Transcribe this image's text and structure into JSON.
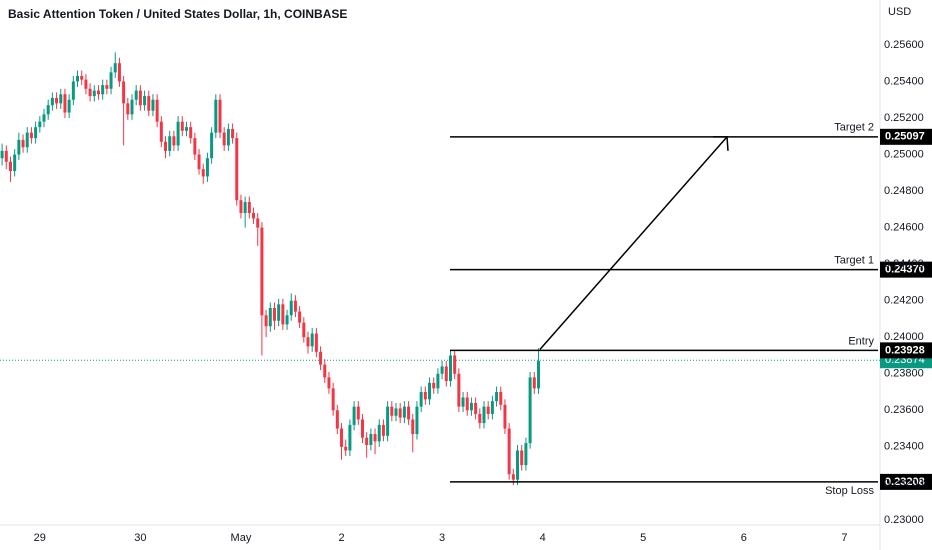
{
  "chart_data": {
    "type": "candlestick",
    "title": "Basic Attention Token / United States Dollar, 1h, COINBASE",
    "currency": "USD",
    "up_color": "#089981",
    "down_color": "#f23645",
    "grid": false,
    "xlim": [
      -9.5,
      200.5
    ],
    "ylim": [
      0.22972,
      0.25846
    ],
    "xticks": [
      {
        "value": 0,
        "label": "29"
      },
      {
        "value": 24,
        "label": "30"
      },
      {
        "value": 48,
        "label": "May"
      },
      {
        "value": 72,
        "label": "2"
      },
      {
        "value": 96,
        "label": "3"
      },
      {
        "value": 120,
        "label": "4"
      },
      {
        "value": 144,
        "label": "5"
      },
      {
        "value": 168,
        "label": "6"
      },
      {
        "value": 192,
        "label": "7"
      }
    ],
    "yticks": [
      {
        "value": 0.256,
        "label": "0.25600"
      },
      {
        "value": 0.254,
        "label": "0.25400"
      },
      {
        "value": 0.252,
        "label": "0.25200"
      },
      {
        "value": 0.25,
        "label": "0.25000"
      },
      {
        "value": 0.248,
        "label": "0.24800"
      },
      {
        "value": 0.246,
        "label": "0.24600"
      },
      {
        "value": 0.244,
        "label": "0.24400"
      },
      {
        "value": 0.242,
        "label": "0.24200"
      },
      {
        "value": 0.24,
        "label": "0.24000"
      },
      {
        "value": 0.238,
        "label": "0.23800"
      },
      {
        "value": 0.236,
        "label": "0.23600"
      },
      {
        "value": 0.234,
        "label": "0.23400"
      },
      {
        "value": 0.232,
        "label": "0.23200"
      },
      {
        "value": 0.23,
        "label": "0.23000"
      }
    ],
    "levels": {
      "names": [
        "Target 2",
        "Target 1",
        "Entry",
        "Stop Loss"
      ],
      "values": [
        0.25097,
        0.2437,
        0.23928,
        0.23208
      ],
      "value_labels": [
        "0.25097",
        "0.24370",
        "0.23928",
        "0.23208"
      ],
      "color": "#000000"
    },
    "last_price": 0.23874,
    "last_price_label": "0.23874",
    "x": [
      -9,
      -8,
      -7,
      -6,
      -5,
      -4,
      -3,
      -2,
      -1,
      0,
      1,
      2,
      3,
      4,
      5,
      6,
      7,
      8,
      9,
      10,
      11,
      12,
      13,
      14,
      15,
      16,
      17,
      18,
      19,
      20,
      21,
      22,
      23,
      24,
      25,
      26,
      27,
      28,
      29,
      30,
      31,
      32,
      33,
      34,
      35,
      36,
      37,
      38,
      39,
      40,
      41,
      42,
      43,
      44,
      45,
      46,
      47,
      48,
      49,
      50,
      51,
      52,
      53,
      54,
      55,
      56,
      57,
      58,
      59,
      60,
      61,
      62,
      63,
      64,
      65,
      66,
      67,
      68,
      69,
      70,
      71,
      72,
      73,
      74,
      75,
      76,
      77,
      78,
      79,
      80,
      81,
      82,
      83,
      84,
      85,
      86,
      87,
      88,
      89,
      90,
      91,
      92,
      93,
      94,
      95,
      96,
      97,
      98,
      99,
      100,
      101,
      102,
      103,
      104,
      105,
      106,
      107,
      108,
      109,
      110,
      111,
      112,
      113,
      114,
      115,
      116,
      117,
      118,
      119
    ],
    "ohlc": [
      [
        0.2498,
        0.2506,
        0.2494,
        0.2502
      ],
      [
        0.2502,
        0.2505,
        0.2492,
        0.2496
      ],
      [
        0.2496,
        0.2499,
        0.2485,
        0.2491
      ],
      [
        0.2491,
        0.2503,
        0.2488,
        0.25
      ],
      [
        0.25,
        0.2512,
        0.2497,
        0.2508
      ],
      [
        0.2508,
        0.2511,
        0.2501,
        0.2504
      ],
      [
        0.2504,
        0.2515,
        0.2501,
        0.2512
      ],
      [
        0.2512,
        0.2515,
        0.2506,
        0.2509
      ],
      [
        0.2509,
        0.2518,
        0.2506,
        0.2515
      ],
      [
        0.2515,
        0.2521,
        0.2512,
        0.2518
      ],
      [
        0.2518,
        0.2525,
        0.2515,
        0.2522
      ],
      [
        0.2522,
        0.253,
        0.2519,
        0.2527
      ],
      [
        0.2527,
        0.2534,
        0.2524,
        0.2531
      ],
      [
        0.2531,
        0.2534,
        0.2525,
        0.2528
      ],
      [
        0.2528,
        0.2536,
        0.2525,
        0.2533
      ],
      [
        0.2533,
        0.2536,
        0.252,
        0.2523
      ],
      [
        0.2523,
        0.2533,
        0.252,
        0.253
      ],
      [
        0.253,
        0.2543,
        0.2527,
        0.254
      ],
      [
        0.254,
        0.2546,
        0.2537,
        0.2543
      ],
      [
        0.2543,
        0.2546,
        0.2538,
        0.2541
      ],
      [
        0.2541,
        0.2544,
        0.2533,
        0.2536
      ],
      [
        0.2536,
        0.2539,
        0.2529,
        0.2532
      ],
      [
        0.2532,
        0.2538,
        0.2529,
        0.2535
      ],
      [
        0.2535,
        0.2538,
        0.253,
        0.2533
      ],
      [
        0.2533,
        0.2541,
        0.253,
        0.2538
      ],
      [
        0.2538,
        0.2541,
        0.2533,
        0.2536
      ],
      [
        0.2536,
        0.2548,
        0.2533,
        0.2545
      ],
      [
        0.2545,
        0.2556,
        0.2542,
        0.255
      ],
      [
        0.255,
        0.2553,
        0.2537,
        0.254
      ],
      [
        0.254,
        0.2543,
        0.2505,
        0.2528
      ],
      [
        0.2528,
        0.2531,
        0.2519,
        0.2522
      ],
      [
        0.2522,
        0.2533,
        0.2519,
        0.253
      ],
      [
        0.253,
        0.2538,
        0.2527,
        0.2535
      ],
      [
        0.2535,
        0.2538,
        0.2524,
        0.2527
      ],
      [
        0.2527,
        0.2535,
        0.2524,
        0.2532
      ],
      [
        0.2532,
        0.2535,
        0.2521,
        0.2524
      ],
      [
        0.2524,
        0.2533,
        0.2521,
        0.253
      ],
      [
        0.253,
        0.2533,
        0.2515,
        0.2518
      ],
      [
        0.2518,
        0.2521,
        0.2504,
        0.2507
      ],
      [
        0.2507,
        0.251,
        0.2498,
        0.2502
      ],
      [
        0.2502,
        0.2513,
        0.2499,
        0.251
      ],
      [
        0.251,
        0.2513,
        0.2502,
        0.2505
      ],
      [
        0.2505,
        0.2521,
        0.2502,
        0.2518
      ],
      [
        0.2518,
        0.2521,
        0.251,
        0.2513
      ],
      [
        0.2513,
        0.2518,
        0.251,
        0.2515
      ],
      [
        0.2515,
        0.2518,
        0.2506,
        0.2509
      ],
      [
        0.2509,
        0.2512,
        0.2497,
        0.25
      ],
      [
        0.25,
        0.2503,
        0.2489,
        0.2492
      ],
      [
        0.2492,
        0.2495,
        0.2484,
        0.2488
      ],
      [
        0.2488,
        0.2501,
        0.2485,
        0.2498
      ],
      [
        0.2498,
        0.2515,
        0.2495,
        0.2512
      ],
      [
        0.2512,
        0.2533,
        0.2509,
        0.253
      ],
      [
        0.253,
        0.2533,
        0.2509,
        0.2512
      ],
      [
        0.2512,
        0.2515,
        0.2502,
        0.2505
      ],
      [
        0.2505,
        0.2517,
        0.2502,
        0.2514
      ],
      [
        0.2514,
        0.2517,
        0.2506,
        0.2509
      ],
      [
        0.2509,
        0.2512,
        0.2472,
        0.2475
      ],
      [
        0.2475,
        0.2478,
        0.2465,
        0.2468
      ],
      [
        0.2468,
        0.2477,
        0.246,
        0.2474
      ],
      [
        0.2474,
        0.2477,
        0.2465,
        0.2468
      ],
      [
        0.2468,
        0.2471,
        0.2462,
        0.2465
      ],
      [
        0.2465,
        0.2468,
        0.245,
        0.246
      ],
      [
        0.246,
        0.2463,
        0.239,
        0.2412
      ],
      [
        0.2412,
        0.2415,
        0.24,
        0.2406
      ],
      [
        0.2406,
        0.2419,
        0.2403,
        0.2416
      ],
      [
        0.2416,
        0.2419,
        0.2404,
        0.2409
      ],
      [
        0.2409,
        0.2421,
        0.2406,
        0.2418
      ],
      [
        0.2418,
        0.2421,
        0.2404,
        0.2407
      ],
      [
        0.2407,
        0.2415,
        0.2404,
        0.2412
      ],
      [
        0.2412,
        0.2424,
        0.2409,
        0.242
      ],
      [
        0.242,
        0.2423,
        0.2411,
        0.2414
      ],
      [
        0.2414,
        0.2417,
        0.2405,
        0.2408
      ],
      [
        0.2408,
        0.2411,
        0.2397,
        0.24
      ],
      [
        0.24,
        0.2403,
        0.2391,
        0.2395
      ],
      [
        0.2395,
        0.2405,
        0.2392,
        0.2402
      ],
      [
        0.2402,
        0.2405,
        0.2389,
        0.2392
      ],
      [
        0.2392,
        0.2395,
        0.2382,
        0.2385
      ],
      [
        0.2385,
        0.2388,
        0.2375,
        0.2378
      ],
      [
        0.2378,
        0.2381,
        0.2369,
        0.2372
      ],
      [
        0.2372,
        0.2375,
        0.2357,
        0.236
      ],
      [
        0.236,
        0.2363,
        0.2347,
        0.235
      ],
      [
        0.235,
        0.2353,
        0.2333,
        0.234
      ],
      [
        0.234,
        0.2344,
        0.2335,
        0.2338
      ],
      [
        0.2338,
        0.2355,
        0.2335,
        0.2352
      ],
      [
        0.2352,
        0.2365,
        0.2349,
        0.2362
      ],
      [
        0.2362,
        0.2365,
        0.2352,
        0.2355
      ],
      [
        0.2355,
        0.2358,
        0.2342,
        0.2345
      ],
      [
        0.2345,
        0.2348,
        0.2334,
        0.2341
      ],
      [
        0.2341,
        0.235,
        0.2338,
        0.2347
      ],
      [
        0.2347,
        0.235,
        0.2336,
        0.2343
      ],
      [
        0.2343,
        0.2355,
        0.234,
        0.2352
      ],
      [
        0.2352,
        0.2355,
        0.2343,
        0.2346
      ],
      [
        0.2346,
        0.2365,
        0.2343,
        0.2362
      ],
      [
        0.2362,
        0.2365,
        0.2354,
        0.2357
      ],
      [
        0.2357,
        0.2364,
        0.2354,
        0.2361
      ],
      [
        0.2361,
        0.2364,
        0.2353,
        0.2356
      ],
      [
        0.2356,
        0.2365,
        0.2353,
        0.2362
      ],
      [
        0.2362,
        0.2365,
        0.2352,
        0.2355
      ],
      [
        0.2355,
        0.2358,
        0.2337,
        0.2347
      ],
      [
        0.2347,
        0.2365,
        0.2344,
        0.2362
      ],
      [
        0.2362,
        0.2373,
        0.2359,
        0.237
      ],
      [
        0.237,
        0.2373,
        0.2363,
        0.2366
      ],
      [
        0.2366,
        0.2378,
        0.2363,
        0.2375
      ],
      [
        0.2375,
        0.2378,
        0.2369,
        0.2372
      ],
      [
        0.2372,
        0.2383,
        0.2369,
        0.238
      ],
      [
        0.238,
        0.2387,
        0.2377,
        0.2384
      ],
      [
        0.2384,
        0.2387,
        0.2373,
        0.2376
      ],
      [
        0.2376,
        0.2393,
        0.2373,
        0.239
      ],
      [
        0.239,
        0.2393,
        0.2377,
        0.238
      ],
      [
        0.238,
        0.2383,
        0.2359,
        0.2362
      ],
      [
        0.2362,
        0.237,
        0.2359,
        0.2367
      ],
      [
        0.2367,
        0.237,
        0.2357,
        0.236
      ],
      [
        0.236,
        0.2367,
        0.2357,
        0.2364
      ],
      [
        0.2364,
        0.2367,
        0.2355,
        0.2358
      ],
      [
        0.2358,
        0.2361,
        0.235,
        0.2353
      ],
      [
        0.2353,
        0.2365,
        0.235,
        0.2362
      ],
      [
        0.2362,
        0.2365,
        0.2355,
        0.2358
      ],
      [
        0.2358,
        0.2368,
        0.2355,
        0.2365
      ],
      [
        0.2365,
        0.2373,
        0.2362,
        0.237
      ],
      [
        0.237,
        0.2373,
        0.236,
        0.2363
      ],
      [
        0.2363,
        0.2366,
        0.2347,
        0.235
      ],
      [
        0.235,
        0.2353,
        0.2322,
        0.2325
      ],
      [
        0.2325,
        0.2328,
        0.2319,
        0.2322
      ],
      [
        0.2322,
        0.2341,
        0.2319,
        0.2338
      ],
      [
        0.2338,
        0.2341,
        0.2327,
        0.233
      ],
      [
        0.233,
        0.2345,
        0.2327,
        0.2342
      ],
      [
        0.2342,
        0.2381,
        0.2339,
        0.2378
      ],
      [
        0.2378,
        0.2381,
        0.2369,
        0.2372
      ],
      [
        0.2372,
        0.2394,
        0.2369,
        0.2387
      ]
    ]
  }
}
